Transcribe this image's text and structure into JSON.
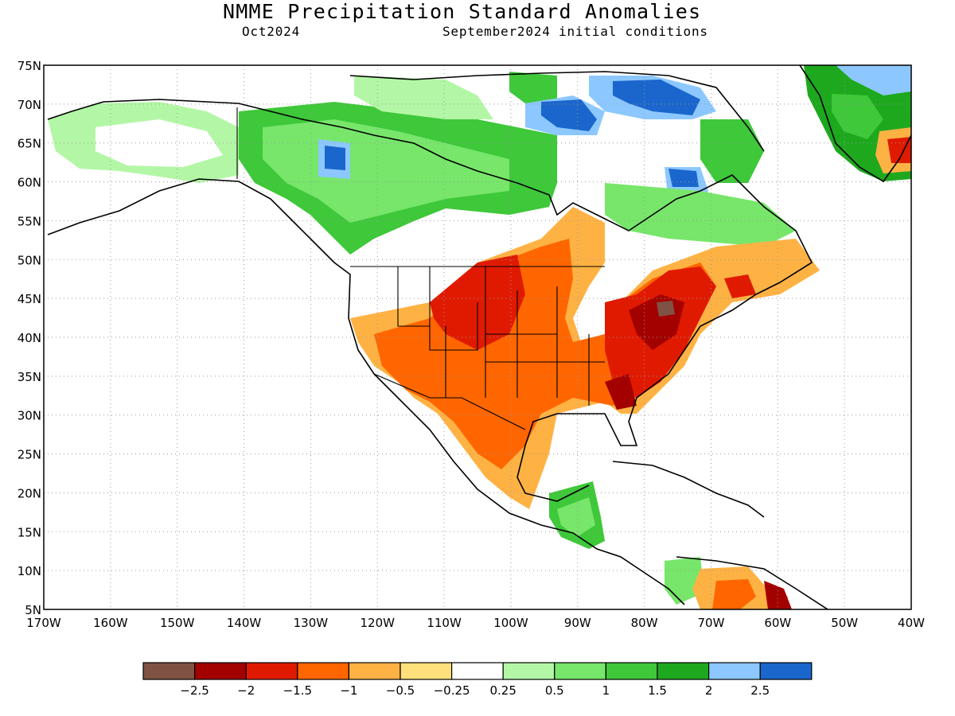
{
  "title": "NMME Precipitation Standard Anomalies",
  "subtitle_left": "Oct2024",
  "subtitle_right": "September2024 initial conditions",
  "map": {
    "lat_labels": [
      "75N",
      "70N",
      "65N",
      "60N",
      "55N",
      "50N",
      "45N",
      "40N",
      "35N",
      "30N",
      "25N",
      "20N",
      "15N",
      "10N",
      "5N"
    ],
    "lon_labels": [
      "170W",
      "160W",
      "150W",
      "140W",
      "130W",
      "120W",
      "110W",
      "100W",
      "90W",
      "80W",
      "70W",
      "60W",
      "50W",
      "40W"
    ],
    "lon_range": [
      -170,
      -40
    ],
    "lat_range": [
      5,
      75
    ],
    "grid": "dotted"
  },
  "colorbar": {
    "colors": [
      "#7f5244",
      "#a30000",
      "#e01a00",
      "#ff6600",
      "#ffb244",
      "#ffe07a",
      "#ffffff",
      "#b3f7a6",
      "#77e66a",
      "#3ec83a",
      "#1ea81e",
      "#8cc8ff",
      "#1a66cc"
    ],
    "tick_labels": [
      "−2.5",
      "−2",
      "−1.5",
      "−1",
      "−0.5",
      "−0.25",
      "0.25",
      "0.5",
      "1",
      "1.5",
      "2",
      "2.5"
    ]
  }
}
